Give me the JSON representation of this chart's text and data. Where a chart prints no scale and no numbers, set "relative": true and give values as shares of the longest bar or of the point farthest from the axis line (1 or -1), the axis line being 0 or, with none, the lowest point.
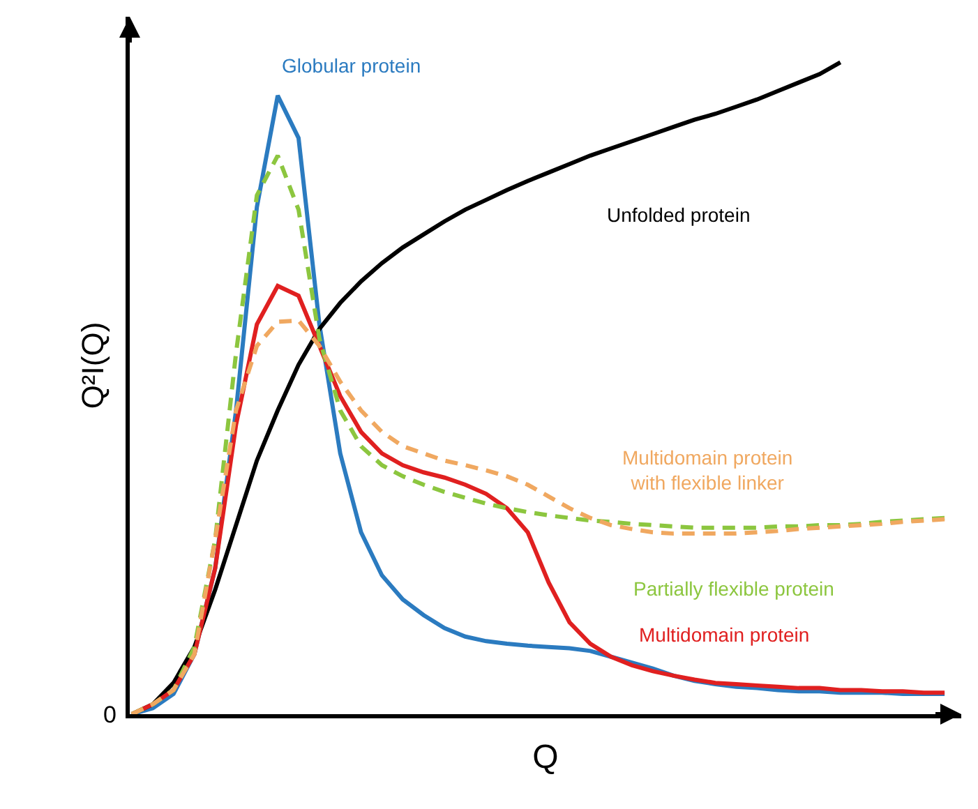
{
  "chart_data": {
    "type": "line",
    "relative": true,
    "xlabel": "Q",
    "ylabel": "Q²I(Q)",
    "annotations": [
      "0"
    ],
    "categories": [
      null,
      null,
      null,
      null,
      null,
      null,
      null,
      null,
      null,
      null,
      null,
      null,
      null,
      null,
      null,
      null,
      null,
      null,
      null,
      null,
      null,
      null,
      null,
      null,
      null,
      null,
      null,
      null,
      null,
      null,
      null,
      null,
      null,
      null,
      null,
      null,
      null,
      null,
      null,
      null
    ],
    "marker": "none",
    "legend": false,
    "series": [
      {
        "name": "Globular protein",
        "color": "#2b7bc0",
        "line_style": "solid",
        "values": [
          0,
          0.009,
          0.031,
          0.092,
          0.224,
          0.466,
          0.778,
          0.949,
          0.884,
          0.598,
          0.4,
          0.279,
          0.213,
          0.176,
          0.152,
          0.132,
          0.119,
          0.112,
          0.108,
          0.105,
          0.103,
          0.101,
          0.097,
          0.088,
          0.079,
          0.07,
          0.059,
          0.051,
          0.046,
          0.042,
          0.04,
          0.037,
          0.035,
          0.035,
          0.033,
          0.033,
          0.033,
          0.031,
          0.031,
          0.031
        ]
      },
      {
        "name": "Unfolded protein",
        "color": "#000000",
        "line_style": "solid",
        "values": [
          0,
          0.015,
          0.048,
          0.103,
          0.191,
          0.29,
          0.389,
          0.466,
          0.536,
          0.591,
          0.631,
          0.664,
          0.692,
          0.716,
          0.736,
          0.756,
          0.774,
          0.789,
          0.804,
          0.818,
          0.831,
          0.844,
          0.857,
          0.868,
          0.879,
          0.89,
          0.901,
          0.912,
          0.921,
          0.932,
          0.943,
          0.956,
          0.969,
          0.982,
          1,
          null,
          null,
          null,
          null,
          null
        ]
      },
      {
        "name": "Multidomain protein",
        "color": "#e02020",
        "line_style": "solid",
        "values": [
          0,
          0.015,
          0.037,
          0.092,
          0.224,
          0.444,
          0.598,
          0.657,
          0.642,
          0.565,
          0.488,
          0.433,
          0.4,
          0.382,
          0.371,
          0.363,
          0.352,
          0.338,
          0.316,
          0.279,
          0.202,
          0.141,
          0.108,
          0.088,
          0.075,
          0.066,
          0.059,
          0.053,
          0.048,
          0.046,
          0.044,
          0.042,
          0.04,
          0.04,
          0.037,
          0.037,
          0.035,
          0.035,
          0.033,
          0.033
        ]
      },
      {
        "name": "Partially flexible protein",
        "color": "#8cc63f",
        "line_style": "dashed",
        "values": [
          0,
          0.015,
          0.037,
          0.103,
          0.268,
          0.554,
          0.796,
          0.857,
          0.774,
          0.576,
          0.466,
          0.411,
          0.382,
          0.365,
          0.352,
          0.341,
          0.332,
          0.323,
          0.316,
          0.31,
          0.305,
          0.301,
          0.297,
          0.295,
          0.292,
          0.29,
          0.288,
          0.286,
          0.286,
          0.286,
          0.286,
          0.288,
          0.288,
          0.29,
          0.29,
          0.292,
          0.295,
          0.297,
          0.299,
          0.301
        ]
      },
      {
        "name": "Multidomain protein with flexible linker",
        "color": "#f0a860",
        "line_style": "dashed",
        "values": [
          0,
          0.015,
          0.037,
          0.092,
          0.268,
          0.466,
          0.565,
          0.602,
          0.604,
          0.565,
          0.51,
          0.466,
          0.433,
          0.411,
          0.4,
          0.389,
          0.382,
          0.374,
          0.365,
          0.352,
          0.334,
          0.316,
          0.301,
          0.29,
          0.284,
          0.279,
          0.277,
          0.277,
          0.277,
          0.277,
          0.279,
          0.281,
          0.284,
          0.286,
          0.288,
          0.29,
          0.292,
          0.295,
          0.297,
          0.299
        ]
      }
    ]
  }
}
